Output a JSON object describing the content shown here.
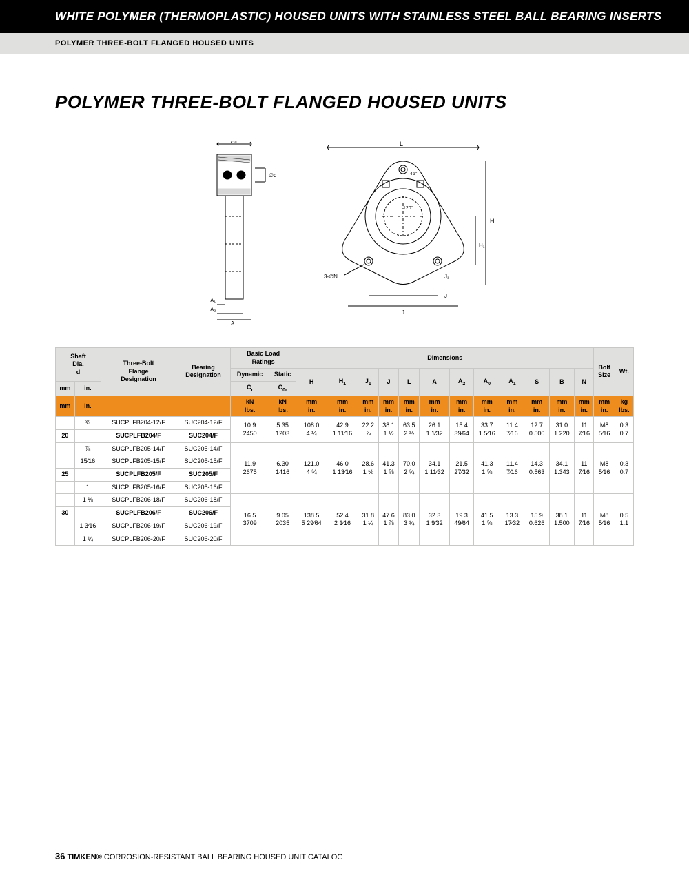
{
  "header": {
    "black": "WHITE POLYMER (THERMOPLASTIC) HOUSED UNITS WITH STAINLESS STEEL BALL BEARING INSERTS",
    "gray": "POLYMER THREE-BOLT FLANGED HOUSED UNITS"
  },
  "title": "POLYMER THREE-BOLT FLANGED HOUSED UNITS",
  "table": {
    "columns": {
      "shaft_dia": "Shaft\nDia.",
      "shaft_d": "d",
      "flange": "Three-Bolt\nFlange\nDesignation",
      "bearing": "Bearing\nDesignation",
      "loads": "Basic Load\nRatings",
      "dynamic": "Dynamic",
      "static": "Static",
      "cr": "Cr",
      "cor": "C0r",
      "dims": "Dimensions",
      "bolt": "Bolt\nSize",
      "wt": "Wt.",
      "dim_labels": [
        "H",
        "H₁",
        "J₁",
        "J",
        "L",
        "A",
        "A₂",
        "A₀",
        "A₁",
        "S",
        "B",
        "N"
      ]
    },
    "unit_row": {
      "mm": "mm",
      "in": "in.",
      "kn": "kN",
      "lbs": "lbs.",
      "kg": "kg"
    },
    "groups": [
      {
        "mm": "20",
        "rows": [
          {
            "in": "¾",
            "flange": "SUCPLFB204-12/F",
            "bearing": "SUC204-12/F"
          },
          {
            "in": "",
            "flange": "SUCPLFB204/F",
            "bearing": "SUC204/F",
            "bold": true
          }
        ],
        "vals": {
          "cr_kn": "10.9",
          "cr_lbs": "2450",
          "cor_kn": "5.35",
          "cor_lbs": "1203",
          "H_mm": "108.0",
          "H_in": "4 ¼",
          "H1_mm": "42.9",
          "H1_in": "1 11⁄16",
          "J1_mm": "22.2",
          "J1_in": "⅞",
          "J_mm": "38.1",
          "J_in": "1 ½",
          "L_mm": "63.5",
          "L_in": "2 ½",
          "A_mm": "26.1",
          "A_in": "1 1⁄32",
          "A2_mm": "15.4",
          "A2_in": "39⁄64",
          "A0_mm": "33.7",
          "A0_in": "1 5⁄16",
          "A1_mm": "11.4",
          "A1_in": "7⁄16",
          "S_mm": "12.7",
          "S_in": "0.500",
          "B_mm": "31.0",
          "B_in": "1.220",
          "N_mm": "11",
          "N_in": "7⁄16",
          "bolt_mm": "M8",
          "bolt_in": "5⁄16",
          "wt_kg": "0.3",
          "wt_lbs": "0.7"
        }
      },
      {
        "mm": "25",
        "rows": [
          {
            "in": "⅞",
            "flange": "SUCPLFB205-14/F",
            "bearing": "SUC205-14/F"
          },
          {
            "in": "15⁄16",
            "flange": "SUCPLFB205-15/F",
            "bearing": "SUC205-15/F"
          },
          {
            "in": "",
            "flange": "SUCPLFB205/F",
            "bearing": "SUC205/F",
            "bold": true
          },
          {
            "in": "1",
            "flange": "SUCPLFB205-16/F",
            "bearing": "SUC205-16/F"
          }
        ],
        "vals": {
          "cr_kn": "11.9",
          "cr_lbs": "2675",
          "cor_kn": "6.30",
          "cor_lbs": "1416",
          "H_mm": "121.0",
          "H_in": "4 ¾",
          "H1_mm": "46.0",
          "H1_in": "1 13⁄16",
          "J1_mm": "28.6",
          "J1_in": "1 ⅛",
          "J_mm": "41.3",
          "J_in": "1 ⅝",
          "L_mm": "70.0",
          "L_in": "2 ¾",
          "A_mm": "34.1",
          "A_in": "1 11⁄32",
          "A2_mm": "21.5",
          "A2_in": "27⁄32",
          "A0_mm": "41.3",
          "A0_in": "1 ⅝",
          "A1_mm": "11.4",
          "A1_in": "7⁄16",
          "S_mm": "14.3",
          "S_in": "0.563",
          "B_mm": "34.1",
          "B_in": "1.343",
          "N_mm": "11",
          "N_in": "7⁄16",
          "bolt_mm": "M8",
          "bolt_in": "5⁄16",
          "wt_kg": "0.3",
          "wt_lbs": "0.7"
        }
      },
      {
        "mm": "30",
        "rows": [
          {
            "in": "1 ⅛",
            "flange": "SUCPLFB206-18/F",
            "bearing": "SUC206-18/F"
          },
          {
            "in": "",
            "flange": "SUCPLFB206/F",
            "bearing": "SUC206/F",
            "bold": true
          },
          {
            "in": "1 3⁄16",
            "flange": "SUCPLFB206-19/F",
            "bearing": "SUC206-19/F"
          },
          {
            "in": "1 ¼",
            "flange": "SUCPLFB206-20/F",
            "bearing": "SUC206-20/F"
          }
        ],
        "vals": {
          "cr_kn": "16.5",
          "cr_lbs": "3709",
          "cor_kn": "9.05",
          "cor_lbs": "2035",
          "H_mm": "138.5",
          "H_in": "5 29⁄64",
          "H1_mm": "52.4",
          "H1_in": "2 1⁄16",
          "J1_mm": "31.8",
          "J1_in": "1 ¼",
          "J_mm": "47.6",
          "J_in": "1 ⅞",
          "L_mm": "83.0",
          "L_in": "3 ¼",
          "A_mm": "32.3",
          "A_in": "1 9⁄32",
          "A2_mm": "19.3",
          "A2_in": "49⁄64",
          "A0_mm": "41.5",
          "A0_in": "1 ⅝",
          "A1_mm": "13.3",
          "A1_in": "17⁄32",
          "S_mm": "15.9",
          "S_in": "0.626",
          "B_mm": "38.1",
          "B_in": "1.500",
          "N_mm": "11",
          "N_in": "7⁄16",
          "bolt_mm": "M8",
          "bolt_in": "5⁄16",
          "wt_kg": "0.5",
          "wt_lbs": "1.1"
        }
      }
    ]
  },
  "footer": {
    "page": "36",
    "brand": "TIMKEN®",
    "text": "CORROSION-RESISTANT BALL BEARING HOUSED UNIT CATALOG"
  },
  "colors": {
    "black": "#000000",
    "gray": "#e0e0de",
    "orange": "#ef8c1e",
    "border": "#c8c8c6"
  }
}
